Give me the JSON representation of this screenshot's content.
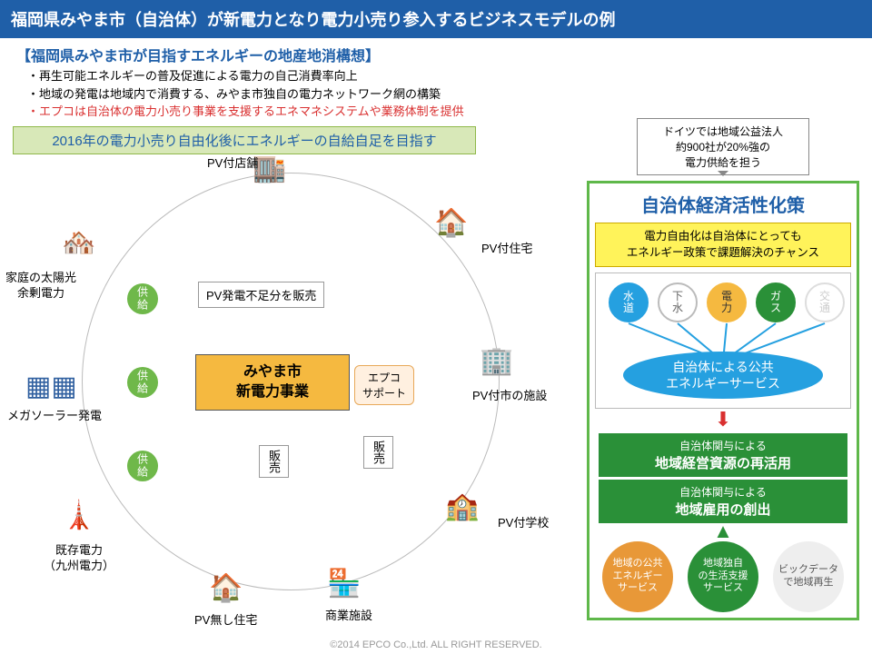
{
  "title": "福岡県みやま市（自治体）が新電力となり電力小売り参入するビジネスモデルの例",
  "subtitle": "【福岡県みやま市が目指すエネルギーの地産地消構想】",
  "bullets": [
    {
      "text": "・再生可能エネルギーの普及促進による電力の自己消費率向上",
      "red": false
    },
    {
      "text": "・地域の発電は地域内で消費する、みやま市独自の電力ネットワーク網の構築",
      "red": false
    },
    {
      "text": "・エプコは自治体の電力小売り事業を支援するエネマネシステムや業務体制を提供",
      "red": true
    }
  ],
  "greenBanner": "2016年の電力小売り自由化後にエネルギーの自給自足を目指す",
  "diagram": {
    "center": "みやま市\n新電力事業",
    "sellBox": "PV発電不足分を販売",
    "callout": "エプコ\nサポート",
    "supply": "供給",
    "sell": "販売",
    "nodes": {
      "pvShop": "PV付店舗",
      "pvHouse": "PV付住宅",
      "pvFacility": "PV付市の施設",
      "pvSchool": "PV付学校",
      "commercial": "商業施設",
      "noPvHouse": "PV無し住宅",
      "existing": "既存電力\n（九州電力）",
      "megaSolar": "メガソーラー発電",
      "surplus": "家庭の太陽光\n余剰電力"
    }
  },
  "right": {
    "note": "ドイツでは地域公益法人\n約900社が20%強の\n電力供給を担う",
    "title": "自治体経済活性化策",
    "yellow": "電力自由化は自治体にとっても\nエネルギー政策で課題解決のチャンス",
    "services": [
      {
        "label": "水道",
        "bg": "#25a0e0",
        "fg": "#fff",
        "border": "#25a0e0"
      },
      {
        "label": "下水",
        "bg": "#fff",
        "fg": "#666",
        "border": "#bbb"
      },
      {
        "label": "電力",
        "bg": "#f5b940",
        "fg": "#333",
        "border": "#f5b940"
      },
      {
        "label": "ガス",
        "bg": "#2a9038",
        "fg": "#fff",
        "border": "#2a9038"
      },
      {
        "label": "交通",
        "bg": "#fff",
        "fg": "#ccc",
        "border": "#ddd"
      }
    ],
    "ellipse": "自治体による公共\nエネルギーサービス",
    "greenBoxes": [
      {
        "small": "自治体関与による",
        "big": "地域経営資源の再活用"
      },
      {
        "small": "自治体関与による",
        "big": "地域雇用の創出"
      }
    ],
    "bottom": [
      {
        "label": "地域の公共\nエネルギー\nサービス",
        "bg": "#e89838",
        "fg": "#fff"
      },
      {
        "label": "地域独自\nの生活支援\nサービス",
        "bg": "#2a9038",
        "fg": "#fff"
      },
      {
        "label": "ビックデータ\nで地域再生",
        "bg": "#eee",
        "fg": "#555"
      }
    ]
  },
  "footer": "©2014 EPCO Co.,Ltd. ALL RIGHT RESERVED.",
  "colors": {
    "titleBg": "#1f5fa8",
    "accent": "#5fb84a",
    "orange": "#f5b940",
    "red": "#d93030"
  }
}
